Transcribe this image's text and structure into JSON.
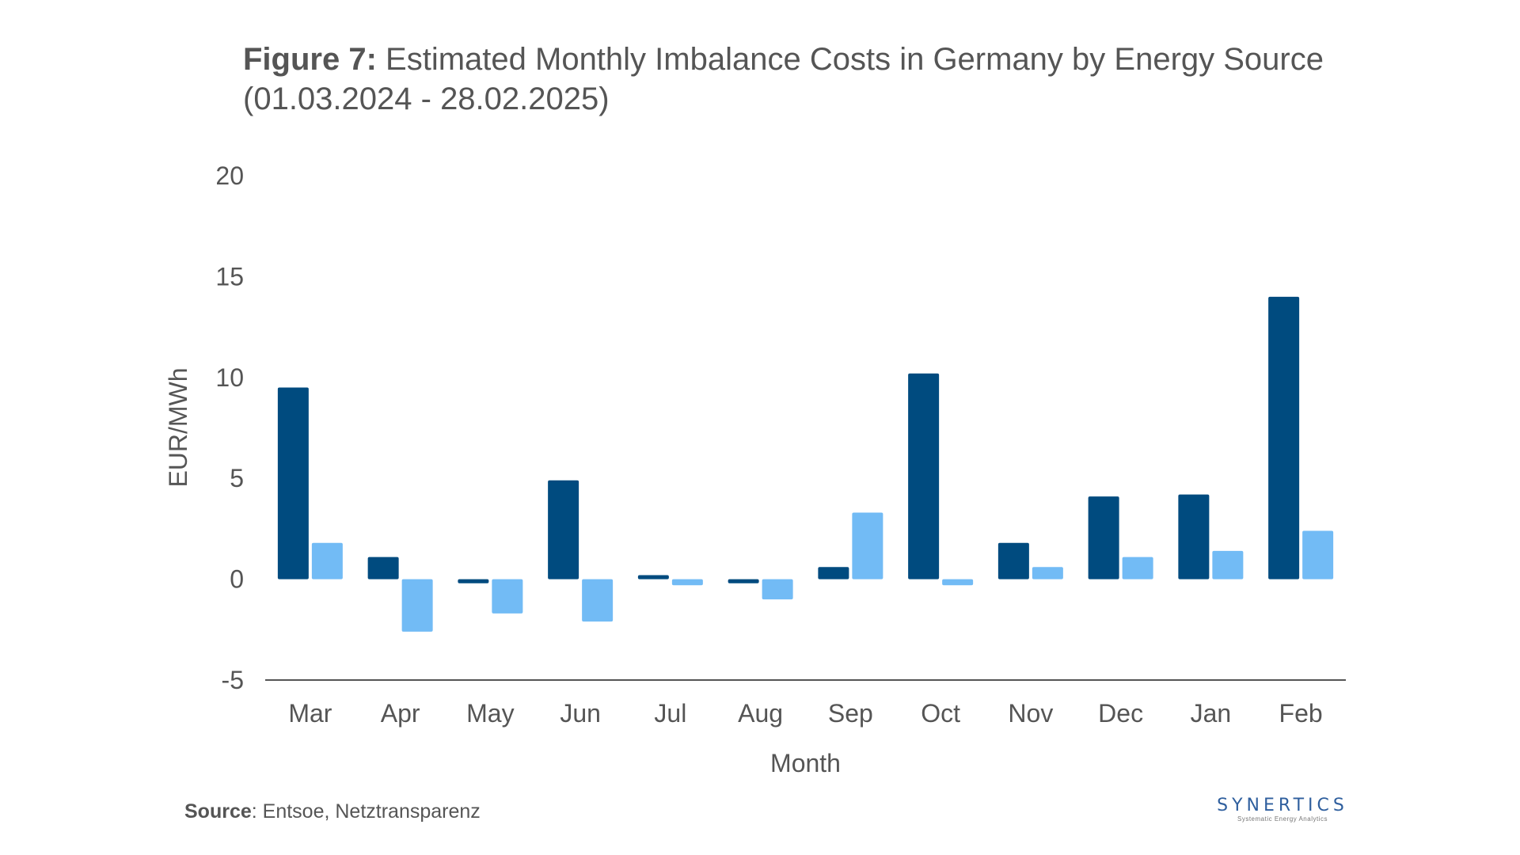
{
  "title": {
    "prefix": "Figure 7:",
    "text": "Estimated Monthly Imbalance Costs in Germany by Energy Source (01.03.2024 -  28.02.2025)"
  },
  "source": {
    "label": "Source",
    "text": ": Entsoe, Netztransparenz"
  },
  "logo": {
    "name": "SYNERTICS",
    "tagline": "Systematic Energy Analytics"
  },
  "colors": {
    "series_dark": "#004b7f",
    "series_light": "#72bbf5",
    "axis_line": "#555555",
    "text": "#555555"
  },
  "chart_data": {
    "type": "bar",
    "title": "Estimated Monthly Imbalance Costs in Germany by Energy Source (01.03.2024 -  28.02.2025)",
    "xlabel": "Month",
    "ylabel": "EUR/MWh",
    "ylim": [
      -5,
      20
    ],
    "yticks": [
      20,
      15,
      10,
      5,
      0,
      -5
    ],
    "grid": false,
    "legend": "none",
    "categories": [
      "Mar",
      "Apr",
      "May",
      "Jun",
      "Jul",
      "Aug",
      "Sep",
      "Oct",
      "Nov",
      "Dec",
      "Jan",
      "Feb"
    ],
    "series": [
      {
        "color": "#004b7f",
        "values": [
          9.5,
          1.1,
          -0.2,
          4.9,
          0.2,
          -0.2,
          0.6,
          10.2,
          1.8,
          4.1,
          4.2,
          14.0
        ]
      },
      {
        "color": "#72bbf5",
        "values": [
          1.8,
          -2.6,
          -1.7,
          -2.1,
          -0.3,
          -1.0,
          3.3,
          -0.3,
          0.6,
          1.1,
          1.4,
          2.4
        ]
      }
    ]
  }
}
